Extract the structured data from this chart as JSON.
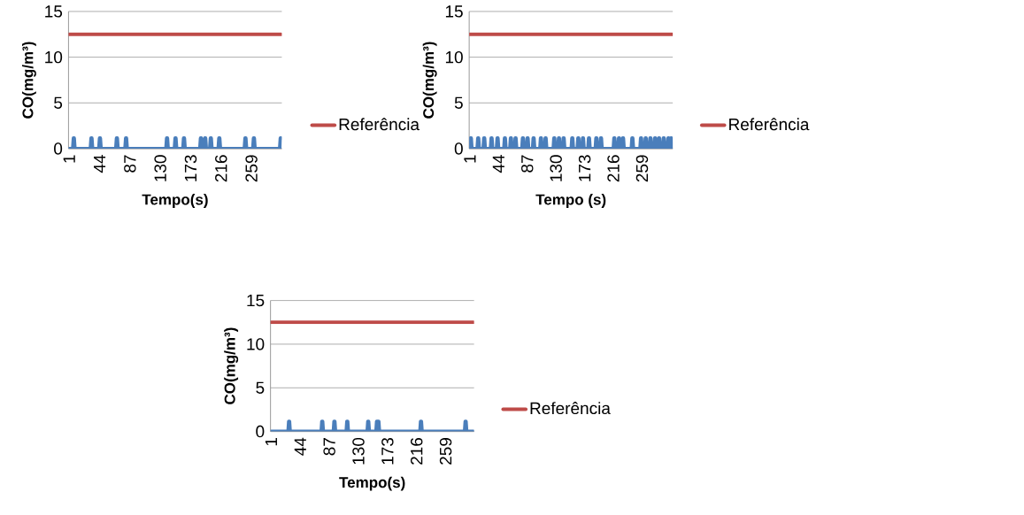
{
  "chart_data": [
    {
      "type": "line",
      "xlabel": "Tempo(s)",
      "ylabel": "CO(mg/m³)",
      "xlim": [
        0,
        302
      ],
      "xticks": [
        1,
        44,
        87,
        130,
        173,
        216,
        259
      ],
      "ylim": [
        0,
        15
      ],
      "yticks": [
        0,
        5,
        10,
        15
      ],
      "grid": "y",
      "legend": "right",
      "series": [
        {
          "color": "#4a7ebb",
          "x": [
            1,
            6,
            7,
            8,
            9,
            31,
            32,
            33,
            34,
            43,
            44,
            45,
            46,
            67,
            68,
            69,
            70,
            80,
            81,
            82,
            83,
            138,
            139,
            140,
            141,
            150,
            151,
            152,
            153,
            162,
            163,
            164,
            165,
            186,
            187,
            188,
            189,
            192,
            193,
            194,
            195,
            200,
            201,
            202,
            203,
            212,
            213,
            214,
            215,
            249,
            250,
            251,
            252,
            261,
            262,
            263,
            264,
            299,
            300,
            301
          ],
          "values": [
            0,
            0,
            1.15,
            1.15,
            0,
            0,
            1.15,
            1.15,
            0,
            0,
            1.15,
            1.15,
            0,
            0,
            1.15,
            1.15,
            0,
            0,
            1.15,
            1.15,
            0,
            0,
            1.15,
            1.15,
            0,
            0,
            1.15,
            1.15,
            0,
            0,
            1.15,
            1.15,
            0,
            0,
            1.15,
            1.15,
            0,
            0,
            1.15,
            1.15,
            0,
            0,
            1.15,
            1.15,
            0,
            0,
            1.15,
            1.15,
            0,
            0,
            1.15,
            1.15,
            0,
            0,
            1.15,
            1.15,
            0,
            0,
            1.15,
            1.15
          ]
        },
        {
          "name": "Referência",
          "color": "#be4b48",
          "x": [
            1,
            301
          ],
          "values": [
            12.5,
            12.5
          ]
        }
      ]
    },
    {
      "type": "line",
      "xlabel": "Tempo (s)",
      "ylabel": "CO(mg/m³)",
      "xlim": [
        0,
        305
      ],
      "xticks": [
        1,
        44,
        87,
        130,
        173,
        216,
        259
      ],
      "ylim": [
        0,
        15
      ],
      "yticks": [
        0,
        5,
        10,
        15
      ],
      "grid": "y",
      "legend": "right",
      "series": [
        {
          "color": "#4a7ebb",
          "x": [
            1,
            2,
            3,
            4,
            12,
            13,
            14,
            15,
            21,
            22,
            23,
            24,
            32,
            33,
            34,
            35,
            41,
            42,
            43,
            44,
            52,
            53,
            54,
            55,
            61,
            62,
            63,
            64,
            68,
            69,
            70,
            71,
            79,
            80,
            81,
            82,
            86,
            87,
            88,
            89,
            95,
            96,
            97,
            98,
            106,
            107,
            108,
            109,
            113,
            114,
            115,
            116,
            126,
            127,
            128,
            129,
            133,
            134,
            135,
            136,
            140,
            141,
            142,
            143,
            153,
            154,
            155,
            156,
            162,
            163,
            164,
            165,
            169,
            170,
            171,
            172,
            178,
            179,
            180,
            181,
            189,
            190,
            191,
            192,
            196,
            197,
            198,
            199,
            216,
            217,
            218,
            219,
            223,
            224,
            225,
            226,
            229,
            230,
            231,
            232,
            243,
            244,
            245,
            246,
            256,
            257,
            258,
            259,
            263,
            264,
            265,
            266,
            270,
            271,
            272,
            273,
            277,
            278,
            279,
            280,
            283,
            284,
            285,
            286,
            290,
            291,
            292,
            293,
            297,
            298,
            299,
            300,
            302,
            303,
            304
          ],
          "values": [
            0,
            1.15,
            1.15,
            0,
            0,
            1.15,
            1.15,
            0,
            0,
            1.15,
            1.15,
            0,
            0,
            1.15,
            1.15,
            0,
            0,
            1.15,
            1.15,
            0,
            0,
            1.15,
            1.15,
            0,
            0,
            1.15,
            1.15,
            0,
            0,
            1.15,
            1.15,
            0,
            0,
            1.15,
            1.15,
            0,
            0,
            1.15,
            1.15,
            0,
            0,
            1.15,
            1.15,
            0,
            0,
            1.15,
            1.15,
            0,
            0,
            1.15,
            1.15,
            0,
            0,
            1.15,
            1.15,
            0,
            0,
            1.15,
            1.15,
            0,
            0,
            1.15,
            1.15,
            0,
            0,
            1.15,
            1.15,
            0,
            0,
            1.15,
            1.15,
            0,
            0,
            1.15,
            1.15,
            0,
            0,
            1.15,
            1.15,
            0,
            0,
            1.15,
            1.15,
            0,
            0,
            1.15,
            1.15,
            0,
            0,
            1.15,
            1.15,
            0,
            0,
            1.15,
            1.15,
            0,
            0,
            1.15,
            1.15,
            0,
            0,
            1.15,
            1.15,
            0,
            0,
            1.15,
            1.15,
            0,
            0,
            1.15,
            1.15,
            0,
            0,
            1.15,
            1.15,
            0,
            0,
            1.15,
            1.15,
            0,
            0,
            1.15,
            1.15,
            0,
            0,
            1.15,
            1.15,
            0,
            0,
            1.15,
            1.15,
            0,
            1.15,
            1.15,
            0
          ]
        },
        {
          "name": "Referência",
          "color": "#be4b48",
          "x": [
            1,
            304
          ],
          "values": [
            12.5,
            12.5
          ]
        }
      ]
    },
    {
      "type": "line",
      "xlabel": "Tempo(s)",
      "ylabel": "CO(mg/m³)",
      "xlim": [
        0,
        301
      ],
      "xticks": [
        1,
        44,
        87,
        130,
        173,
        216,
        259
      ],
      "ylim": [
        0,
        15
      ],
      "yticks": [
        0,
        5,
        10,
        15
      ],
      "grid": "y",
      "legend": "right",
      "series": [
        {
          "color": "#4a7ebb",
          "x": [
            1,
            26,
            27,
            28,
            29,
            75,
            76,
            77,
            78,
            93,
            94,
            95,
            96,
            112,
            113,
            114,
            115,
            143,
            144,
            145,
            146,
            156,
            157,
            160,
            161,
            221,
            222,
            223,
            224,
            287,
            288,
            289,
            290,
            300
          ],
          "values": [
            0,
            0,
            1.15,
            1.15,
            0,
            0,
            1.15,
            1.15,
            0,
            0,
            1.15,
            1.15,
            0,
            0,
            1.15,
            1.15,
            0,
            0,
            1.15,
            1.15,
            0,
            0,
            1.15,
            1.15,
            0,
            0,
            1.15,
            1.15,
            0,
            0,
            1.15,
            1.15,
            0,
            0
          ]
        },
        {
          "name": "Referência",
          "color": "#be4b48",
          "x": [
            1,
            300
          ],
          "values": [
            12.5,
            12.5
          ]
        }
      ]
    }
  ]
}
